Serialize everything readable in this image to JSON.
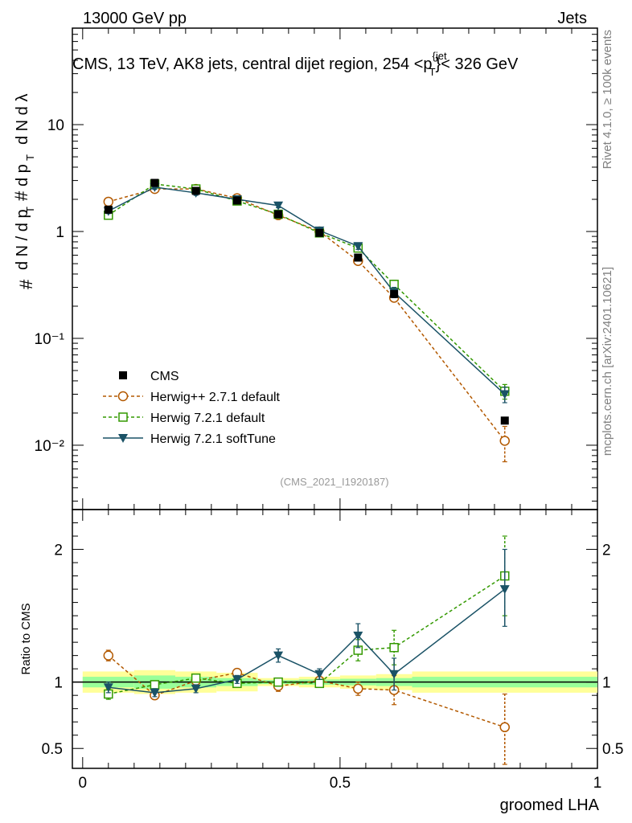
{
  "header": {
    "energy_label": "13000 GeV pp",
    "category_label": "Jets"
  },
  "sidebar": {
    "rivet_label": "Rivet 4.1.0, ≥ 100k events",
    "mcplots_label": "mcplots.cern.ch [arXiv:2401.10621]"
  },
  "colors": {
    "cms": "#000000",
    "herwigpp": "#b35900",
    "herwig721": "#339900",
    "softtune": "#1a5266",
    "band_outer": "#ffff99",
    "band_inner": "#99ff99"
  },
  "chart_data": [
    {
      "type": "line",
      "panel": "main",
      "title": "CMS, 13 TeV, AK8 jets, central dijet region, 254 <p_T^{jet}< 326 GeV",
      "title_parts": {
        "prefix": "CMS, 13 TeV, AK8 jets, central dijet region, 254 <p",
        "sup": "{jet",
        "sub": "T",
        "suffix": "}< 326 GeV"
      },
      "ylabel": "1/dN/dp_T d²N/dp_T dλ",
      "yscale": "log",
      "ylim": [
        0.0025,
        80
      ],
      "xlim": [
        -0.02,
        1.0
      ],
      "y_tick_labels": [
        "10⁻²",
        "10⁻¹",
        "1",
        "10"
      ],
      "y_tick_values": [
        0.01,
        0.1,
        1,
        10
      ],
      "watermark": "(CMS_2021_I1920187)",
      "legend_position": "lower-left",
      "x": [
        0.05,
        0.14,
        0.22,
        0.3,
        0.38,
        0.46,
        0.535,
        0.605,
        0.82
      ],
      "series": [
        {
          "name": "CMS",
          "label": "CMS",
          "marker": "square-filled",
          "color_key": "cms",
          "values": [
            1.6,
            2.85,
            2.4,
            1.95,
            1.45,
            0.97,
            0.57,
            0.26,
            0.017
          ]
        },
        {
          "name": "Herwig++ 2.7.1 default",
          "label": "Herwig++ 2.7.1 default",
          "marker": "circle-open",
          "color_key": "herwigpp",
          "dash": true,
          "values": [
            1.9,
            2.5,
            2.5,
            2.05,
            1.42,
            1.0,
            0.53,
            0.24,
            0.011
          ],
          "err_low": [
            0.1,
            0.12,
            0.12,
            0.1,
            0.08,
            0.06,
            0.04,
            0.02,
            0.004
          ],
          "err_high": [
            0.1,
            0.12,
            0.12,
            0.1,
            0.08,
            0.06,
            0.04,
            0.02,
            0.004
          ]
        },
        {
          "name": "Herwig 7.2.1 default",
          "label": "Herwig 7.2.1 default",
          "marker": "square-open",
          "color_key": "herwig721",
          "dash": true,
          "values": [
            1.42,
            2.78,
            2.5,
            1.93,
            1.45,
            0.97,
            0.7,
            0.32,
            0.032
          ],
          "err_low": [
            0.08,
            0.12,
            0.12,
            0.1,
            0.08,
            0.06,
            0.05,
            0.03,
            0.005
          ],
          "err_high": [
            0.08,
            0.12,
            0.12,
            0.1,
            0.08,
            0.06,
            0.05,
            0.03,
            0.005
          ]
        },
        {
          "name": "Herwig 7.2.1 softTune",
          "label": "Herwig 7.2.1 softTune",
          "marker": "triangle-down-filled",
          "color_key": "softtune",
          "values": [
            1.55,
            2.6,
            2.3,
            2.0,
            1.75,
            1.02,
            0.73,
            0.27,
            0.03
          ],
          "err_low": [
            0.08,
            0.12,
            0.12,
            0.1,
            0.08,
            0.06,
            0.05,
            0.03,
            0.005
          ],
          "err_high": [
            0.08,
            0.12,
            0.12,
            0.1,
            0.08,
            0.06,
            0.05,
            0.03,
            0.005
          ]
        }
      ]
    },
    {
      "type": "line",
      "panel": "ratio",
      "ylabel": "Ratio to CMS",
      "xlabel": "groomed LHA",
      "ylim": [
        0.35,
        2.3
      ],
      "xlim": [
        -0.02,
        1.0
      ],
      "y_tick_labels": [
        "0.5",
        "1",
        "2"
      ],
      "y_tick_values": [
        0.5,
        1,
        2
      ],
      "x_tick_labels": [
        "0",
        "0.5",
        "1"
      ],
      "x_tick_values": [
        0,
        0.5,
        1
      ],
      "bins": [
        0.0,
        0.1,
        0.18,
        0.26,
        0.34,
        0.42,
        0.5,
        0.57,
        0.64,
        1.0
      ],
      "band_outer": [
        [
          0.92,
          1.08
        ],
        [
          0.91,
          1.09
        ],
        [
          0.92,
          1.08
        ],
        [
          0.93,
          1.07
        ],
        [
          0.97,
          1.03
        ],
        [
          0.96,
          1.04
        ],
        [
          0.95,
          1.05
        ],
        [
          0.94,
          1.06
        ],
        [
          0.92,
          1.08
        ]
      ],
      "band_inner": [
        [
          0.96,
          1.04
        ],
        [
          0.95,
          1.05
        ],
        [
          0.96,
          1.04
        ],
        [
          0.97,
          1.03
        ],
        [
          0.985,
          1.015
        ],
        [
          0.98,
          1.02
        ],
        [
          0.975,
          1.025
        ],
        [
          0.97,
          1.03
        ],
        [
          0.96,
          1.04
        ]
      ],
      "x": [
        0.05,
        0.14,
        0.22,
        0.3,
        0.38,
        0.46,
        0.535,
        0.605,
        0.82
      ],
      "series": [
        {
          "name": "Herwig++ 2.7.1 default",
          "color_key": "herwigpp",
          "marker": "circle-open",
          "dash": true,
          "values": [
            1.2,
            0.9,
            1.01,
            1.07,
            0.97,
            1.01,
            0.95,
            0.94,
            0.66
          ],
          "err_low": [
            0.04,
            0.03,
            0.03,
            0.03,
            0.04,
            0.03,
            0.05,
            0.11,
            0.28
          ],
          "err_high": [
            0.04,
            0.03,
            0.03,
            0.03,
            0.04,
            0.03,
            0.05,
            0.11,
            0.25
          ]
        },
        {
          "name": "Herwig 7.2.1 default",
          "color_key": "herwig721",
          "marker": "square-open",
          "dash": true,
          "values": [
            0.91,
            0.98,
            1.03,
            0.99,
            1.0,
            0.99,
            1.24,
            1.26,
            1.8
          ],
          "err_low": [
            0.04,
            0.03,
            0.03,
            0.03,
            0.03,
            0.03,
            0.08,
            0.13,
            0.3
          ],
          "err_high": [
            0.04,
            0.03,
            0.03,
            0.03,
            0.03,
            0.03,
            0.08,
            0.13,
            0.3
          ]
        },
        {
          "name": "Herwig 7.2.1 softTune",
          "color_key": "softtune",
          "marker": "triangle-down-filled",
          "values": [
            0.96,
            0.92,
            0.95,
            1.02,
            1.2,
            1.06,
            1.35,
            1.06,
            1.7
          ],
          "err_low": [
            0.04,
            0.03,
            0.03,
            0.03,
            0.05,
            0.04,
            0.09,
            0.12,
            0.28
          ],
          "err_high": [
            0.04,
            0.03,
            0.03,
            0.03,
            0.05,
            0.04,
            0.09,
            0.12,
            0.3
          ]
        }
      ]
    }
  ]
}
